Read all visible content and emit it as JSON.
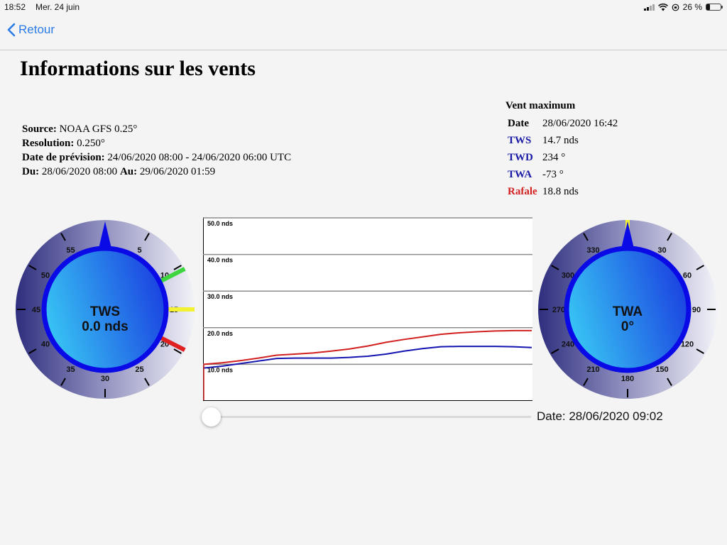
{
  "status_bar": {
    "time": "18:52",
    "date": "Mer. 24 juin",
    "battery": "26 %",
    "battery_level": 0.26
  },
  "nav": {
    "back_label": "Retour"
  },
  "page": {
    "title": "Informations sur les vents"
  },
  "info": {
    "source_label": "Source:",
    "source_value": "NOAA GFS 0.25°",
    "resolution_label": "Resolution:",
    "resolution_value": "0.250°",
    "forecast_label": "Date de prévision:",
    "forecast_value": "24/06/2020 08:00 - 24/06/2020 06:00 UTC",
    "from_label": "Du:",
    "from_value": "28/06/2020 08:00",
    "to_label": "Au:",
    "to_value": "29/06/2020 01:59"
  },
  "max_wind": {
    "title": "Vent maximum",
    "rows": [
      {
        "label": "Date",
        "value": "28/06/2020 16:42",
        "color": "#000000"
      },
      {
        "label": "TWS",
        "value": "14.7 nds",
        "color": "#1a1aa6"
      },
      {
        "label": "TWD",
        "value": "234 °",
        "color": "#1a1aa6"
      },
      {
        "label": "TWA",
        "value": "-73 °",
        "color": "#1a1aa6"
      },
      {
        "label": "Rafale",
        "value": "18.8 nds",
        "color": "#d21f1f"
      }
    ]
  },
  "tws_gauge": {
    "label": "TWS",
    "value": "0.0 nds",
    "tick_labels": [
      "5",
      "10",
      "15",
      "20",
      "25",
      "30",
      "35",
      "40",
      "45",
      "50",
      "55"
    ],
    "needle_value": 0,
    "markers": [
      {
        "value": 10.5,
        "color": "#3ed63e"
      },
      {
        "value": 15,
        "color": "#f2f233"
      },
      {
        "value": 19.5,
        "color": "#e02020"
      }
    ]
  },
  "twa_gauge": {
    "label": "TWA",
    "value": "0°",
    "tick_labels": [
      "30",
      "60",
      "90",
      "120",
      "150",
      "180",
      "210",
      "240",
      "270",
      "300",
      "330"
    ],
    "needle_value": 0,
    "markers": [
      {
        "value": 0,
        "color": "#f2f233"
      }
    ]
  },
  "chart_data": {
    "type": "line",
    "y_tick_labels": [
      "10.0 nds",
      "20.0 nds",
      "30.0 nds",
      "40.0 nds",
      "50.0 nds"
    ],
    "y_ticks": [
      10,
      20,
      30,
      40,
      50
    ],
    "ylim": [
      0,
      50
    ],
    "x": [
      0,
      1,
      2,
      3,
      4,
      5,
      6,
      7,
      8,
      9,
      10,
      11,
      12,
      13,
      14,
      15,
      16,
      17,
      18
    ],
    "series": [
      {
        "color": "#d21f1f",
        "values": [
          10.0,
          10.4,
          11.0,
          11.7,
          12.5,
          12.8,
          13.1,
          13.6,
          14.2,
          15.0,
          16.0,
          16.8,
          17.5,
          18.2,
          18.6,
          18.9,
          19.1,
          19.2,
          19.2
        ]
      },
      {
        "color": "#1414b0",
        "values": [
          9.0,
          9.5,
          10.2,
          10.9,
          11.6,
          11.7,
          11.7,
          11.7,
          11.9,
          12.2,
          12.8,
          13.6,
          14.3,
          14.8,
          14.9,
          14.9,
          14.9,
          14.8,
          14.6
        ]
      }
    ],
    "current_index": 0
  },
  "slider": {
    "value": 0
  },
  "current_date": "Date: 28/06/2020 09:02"
}
